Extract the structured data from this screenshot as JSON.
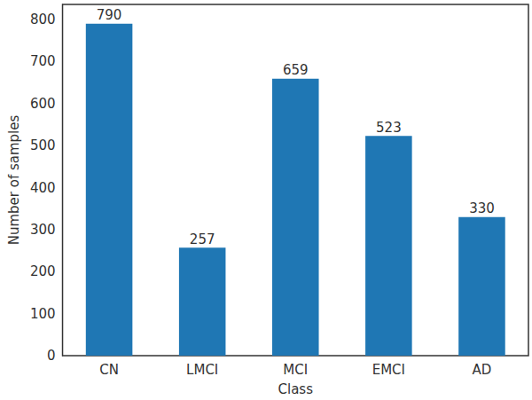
{
  "chart_data": {
    "type": "bar",
    "x_label": "Class",
    "y_label": "Number of samples",
    "categories": [
      "CN",
      "LMCI",
      "MCI",
      "EMCI",
      "AD"
    ],
    "values": [
      790,
      257,
      659,
      523,
      330
    ],
    "color": "#1f77b4",
    "ylim": [
      0,
      836
    ],
    "yticks": [
      0,
      100,
      200,
      300,
      400,
      500,
      600,
      700,
      800
    ],
    "grid": false,
    "data_labels": true
  }
}
